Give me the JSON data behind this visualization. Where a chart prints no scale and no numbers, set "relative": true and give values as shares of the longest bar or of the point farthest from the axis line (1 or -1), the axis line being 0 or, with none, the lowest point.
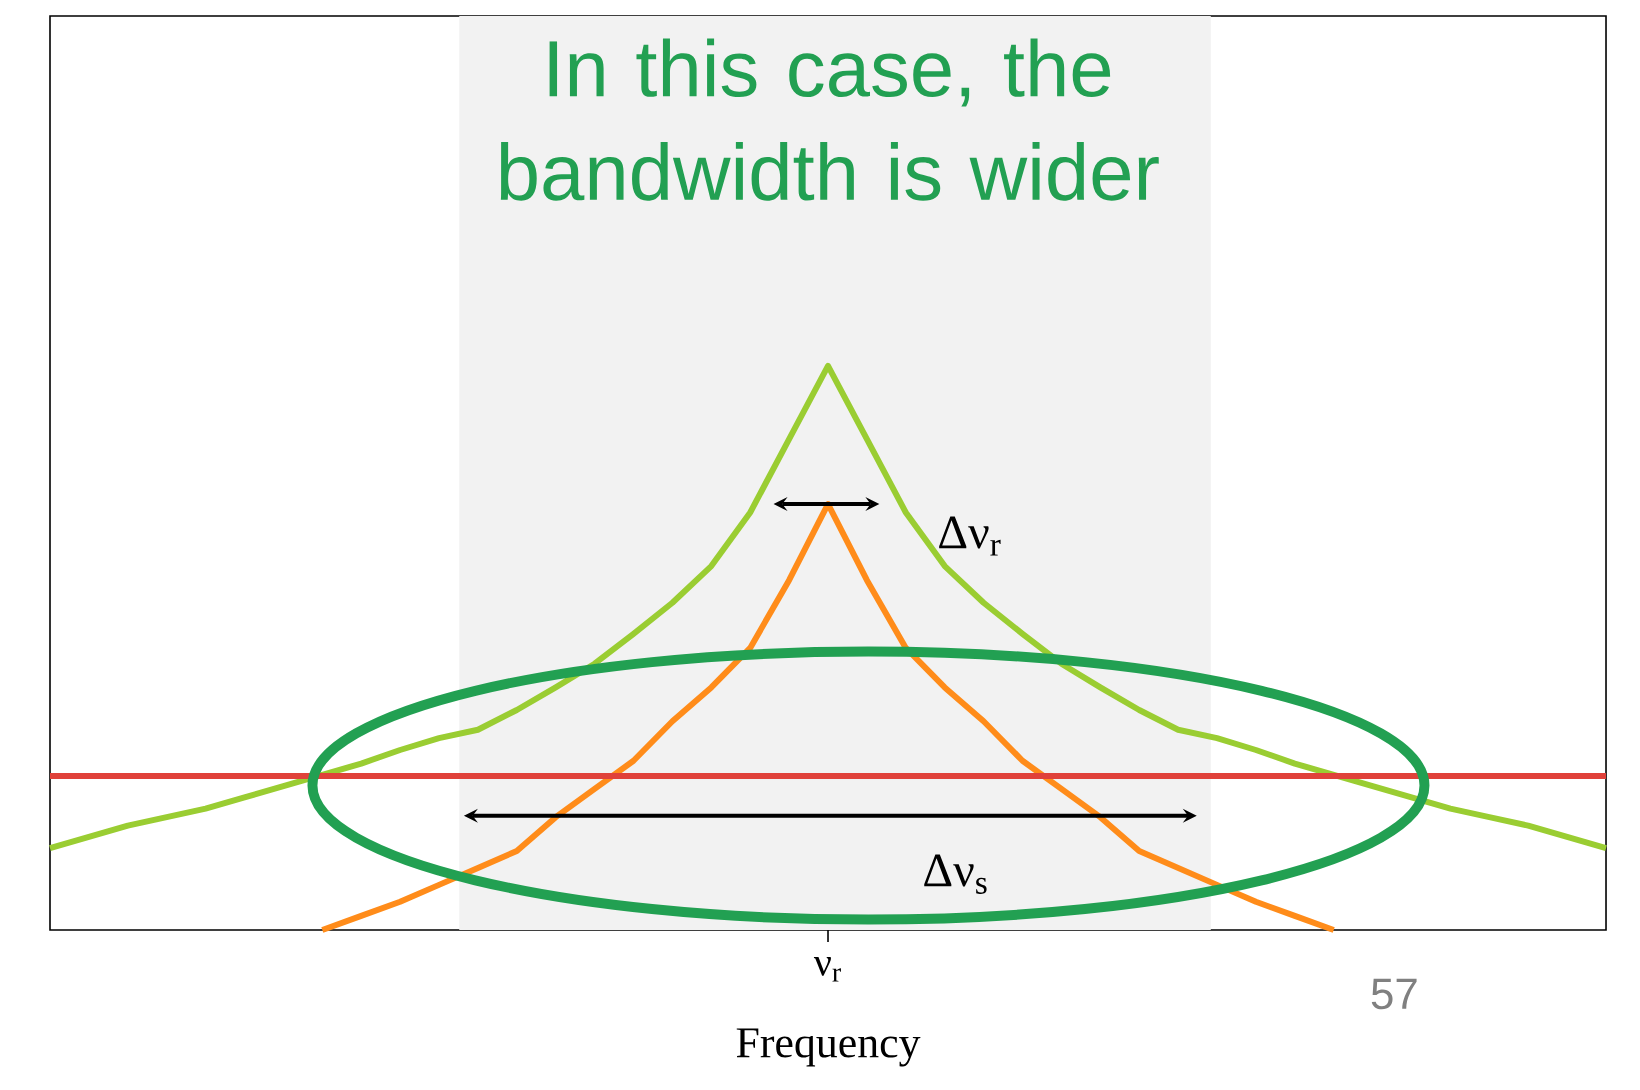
{
  "chart_data": {
    "type": "line",
    "title": "In this case, the bandwidth is wider",
    "xlabel": "Frequency",
    "relative": true,
    "categories": [
      null,
      null,
      null,
      null,
      null,
      null,
      null,
      null,
      null,
      null,
      null,
      null,
      null,
      null,
      null,
      null,
      null,
      null,
      null,
      null,
      null,
      null,
      null,
      null,
      null,
      null,
      null,
      null,
      null,
      null,
      null,
      null,
      null,
      null,
      null,
      null,
      null,
      null,
      null,
      null,
      null
    ],
    "series": [
      {
        "color": "#9acd32",
        "values": [
          0.145,
          0.165,
          0.185,
          0.2,
          0.215,
          0.235,
          0.255,
          0.275,
          0.295,
          0.319,
          0.34,
          0.355,
          0.39,
          0.43,
          0.472,
          0.525,
          0.58,
          0.645,
          0.74,
          0.87,
          1,
          0.87,
          0.74,
          0.645,
          0.58,
          0.525,
          0.472,
          0.43,
          0.39,
          0.355,
          0.34,
          0.319,
          0.295,
          0.275,
          0.255,
          0.235,
          0.215,
          0.2,
          0.185,
          0.165,
          0.145
        ]
      },
      {
        "color": "#ff8c1a",
        "values": [
          null,
          null,
          null,
          null,
          null,
          null,
          null,
          0,
          0.025,
          0.05,
          0.08,
          0.11,
          0.14,
          0.2,
          0.25,
          0.3,
          0.37,
          0.43,
          0.5,
          0.62,
          0.755,
          0.62,
          0.5,
          0.43,
          0.37,
          0.3,
          0.25,
          0.2,
          0.14,
          0.11,
          0.08,
          0.05,
          0.025,
          0,
          null,
          null,
          null,
          null,
          null,
          null,
          null
        ]
      },
      {
        "color": "#e0413a",
        "values": [
          0.273,
          0.273,
          0.273,
          0.273,
          0.273,
          0.273,
          0.273,
          0.273,
          0.273,
          0.273,
          0.273,
          0.273,
          0.273,
          0.273,
          0.273,
          0.273,
          0.273,
          0.273,
          0.273,
          0.273,
          0.273,
          0.273,
          0.273,
          0.273,
          0.273,
          0.273,
          0.273,
          0.273,
          0.273,
          0.273,
          0.273,
          0.273,
          0.273,
          0.273,
          0.273,
          0.273,
          0.273,
          0.273,
          0.273,
          0.273,
          0.273
        ]
      }
    ],
    "annotations": [
      "Δν$_{r}$",
      "Δν$_{s}$",
      "ν$_{r}$",
      "57"
    ]
  }
}
